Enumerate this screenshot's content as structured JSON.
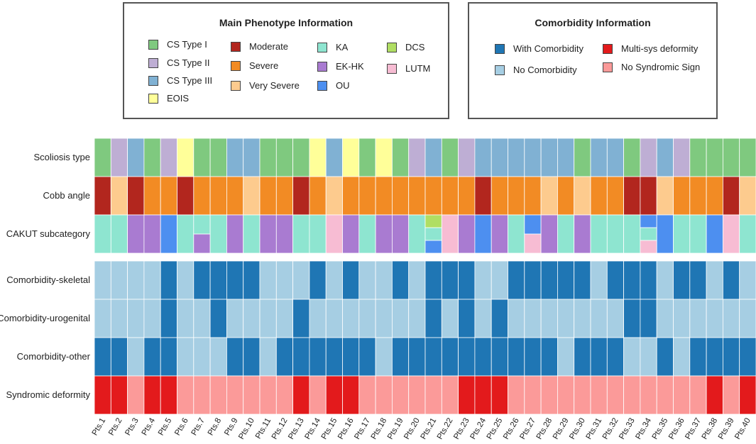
{
  "colors": {
    "cs1": "#7fc97f",
    "cs2": "#beaed4",
    "cs3": "#80b1d3",
    "eois": "#ffff99",
    "moderate": "#b2261e",
    "severe": "#f28b24",
    "very_severe": "#fdcb8e",
    "ka": "#8ee5d0",
    "ekhk": "#a97bd1",
    "ou": "#4d8ff0",
    "dcs": "#b0de63",
    "lutm": "#f7bcd3",
    "with": "#1f76b4",
    "without": "#a6cee3",
    "multisys": "#e31a1c",
    "nosyn": "#fb9a99"
  },
  "legend_phenotype": {
    "title": "Main Phenotype Information",
    "items": [
      {
        "key": "cs1",
        "label": "CS Type I"
      },
      {
        "key": "cs2",
        "label": "CS Type II"
      },
      {
        "key": "cs3",
        "label": "CS Type III"
      },
      {
        "key": "eois",
        "label": "EOIS"
      },
      {
        "key": "moderate",
        "label": "Moderate"
      },
      {
        "key": "severe",
        "label": "Severe"
      },
      {
        "key": "very_severe",
        "label": "Very Severe"
      },
      {
        "key": "ka",
        "label": "KA"
      },
      {
        "key": "ekhk",
        "label": "EK-HK"
      },
      {
        "key": "ou",
        "label": "OU"
      },
      {
        "key": "dcs",
        "label": "DCS"
      },
      {
        "key": "lutm",
        "label": "LUTM"
      }
    ]
  },
  "legend_comorbidity": {
    "title": "Comorbidity Information",
    "items": [
      {
        "key": "with",
        "label": "With Comorbidity"
      },
      {
        "key": "without",
        "label": "No Comorbidity"
      },
      {
        "key": "multisys",
        "label": "Multi-sys deformity"
      },
      {
        "key": "nosyn",
        "label": "No Syndromic Sign"
      }
    ]
  },
  "chart_data": {
    "type": "heatmap",
    "patients": [
      "Pts.1",
      "Pts.2",
      "Pts.3",
      "Pts.4",
      "Pts.5",
      "Pts.6",
      "Pts.7",
      "Pts.8",
      "Pts.9",
      "Pts.10",
      "Pts.11",
      "Pts.12",
      "Pts.13",
      "Pts.14",
      "Pts.15",
      "Pts.16",
      "Pts.17",
      "Pts.18",
      "Pts.19",
      "Pts.20",
      "Pts.21",
      "Pts.22",
      "Pts.23",
      "Pts.24",
      "Pts.25",
      "Pts.26",
      "Pts.27",
      "Pts.28",
      "Pts.29",
      "Pts.30",
      "Pts.31",
      "Pts.32",
      "Pts.33",
      "Pts.34",
      "Pts.35",
      "Pts.36",
      "Pts.37",
      "Pts.38",
      "Pts.39",
      "Pts.40"
    ],
    "rows": [
      {
        "label": "Scoliosis type",
        "group": 1,
        "values": [
          "cs1",
          "cs2",
          "cs3",
          "cs1",
          "cs2",
          "eois",
          "cs1",
          "cs1",
          "cs3",
          "cs3",
          "cs1",
          "cs1",
          "cs1",
          "eois",
          "cs3",
          "eois",
          "cs1",
          "eois",
          "cs1",
          "cs2",
          "cs3",
          "cs1",
          "cs2",
          "cs3",
          "cs3",
          "cs3",
          "cs3",
          "cs3",
          "cs3",
          "cs1",
          "cs3",
          "cs3",
          "cs1",
          "cs2",
          "cs3",
          "cs2",
          "cs1",
          "cs1",
          "cs1",
          "cs1"
        ]
      },
      {
        "label": "Cobb angle",
        "group": 1,
        "values": [
          "moderate",
          "very_severe",
          "moderate",
          "severe",
          "severe",
          "moderate",
          "severe",
          "severe",
          "severe",
          "very_severe",
          "severe",
          "severe",
          "moderate",
          "severe",
          "very_severe",
          "severe",
          "severe",
          "severe",
          "severe",
          "severe",
          "severe",
          "severe",
          "severe",
          "moderate",
          "severe",
          "severe",
          "severe",
          "very_severe",
          "severe",
          "very_severe",
          "severe",
          "severe",
          "moderate",
          "moderate",
          "very_severe",
          "severe",
          "severe",
          "severe",
          "moderate",
          "very_severe"
        ]
      },
      {
        "label": "CAKUT subcategory",
        "group": 1,
        "values": [
          [
            "ka"
          ],
          [
            "ka"
          ],
          [
            "ekhk"
          ],
          [
            "ekhk"
          ],
          [
            "ou"
          ],
          [
            "ka"
          ],
          [
            "ka",
            "ekhk"
          ],
          [
            "ka"
          ],
          [
            "ekhk"
          ],
          [
            "ka"
          ],
          [
            "ekhk"
          ],
          [
            "ekhk"
          ],
          [
            "ka"
          ],
          [
            "ka"
          ],
          [
            "lutm"
          ],
          [
            "ekhk"
          ],
          [
            "ka"
          ],
          [
            "ekhk"
          ],
          [
            "ekhk"
          ],
          [
            "ka"
          ],
          [
            "dcs",
            "ka",
            "ou"
          ],
          [
            "lutm"
          ],
          [
            "ekhk"
          ],
          [
            "ou"
          ],
          [
            "ekhk"
          ],
          [
            "ka"
          ],
          [
            "ou",
            "lutm"
          ],
          [
            "ekhk"
          ],
          [
            "ka"
          ],
          [
            "ekhk"
          ],
          [
            "ka"
          ],
          [
            "ka"
          ],
          [
            "ka"
          ],
          [
            "ou",
            "ka",
            "lutm"
          ],
          [
            "ou"
          ],
          [
            "ka"
          ],
          [
            "ka"
          ],
          [
            "ou"
          ],
          [
            "lutm"
          ],
          [
            "ka"
          ]
        ]
      },
      {
        "label": "Comorbidity-skeletal",
        "group": 2,
        "values": [
          "without",
          "without",
          "without",
          "without",
          "with",
          "without",
          "with",
          "with",
          "with",
          "with",
          "without",
          "without",
          "without",
          "with",
          "without",
          "with",
          "without",
          "without",
          "with",
          "without",
          "with",
          "with",
          "with",
          "without",
          "without",
          "with",
          "with",
          "with",
          "with",
          "with",
          "without",
          "with",
          "with",
          "with",
          "without",
          "with",
          "with",
          "without",
          "with",
          "without"
        ]
      },
      {
        "label": "Comorbidity-urogenital",
        "group": 2,
        "values": [
          "without",
          "without",
          "without",
          "without",
          "with",
          "without",
          "without",
          "with",
          "without",
          "without",
          "without",
          "without",
          "with",
          "without",
          "without",
          "without",
          "without",
          "without",
          "without",
          "without",
          "with",
          "without",
          "with",
          "without",
          "with",
          "without",
          "without",
          "without",
          "without",
          "without",
          "without",
          "without",
          "with",
          "with",
          "without",
          "without",
          "without",
          "without",
          "without",
          "without"
        ]
      },
      {
        "label": "Comorbidity-other",
        "group": 2,
        "values": [
          "with",
          "with",
          "without",
          "with",
          "with",
          "without",
          "without",
          "without",
          "with",
          "with",
          "without",
          "with",
          "with",
          "with",
          "with",
          "with",
          "with",
          "without",
          "with",
          "with",
          "with",
          "with",
          "with",
          "with",
          "with",
          "with",
          "with",
          "with",
          "without",
          "with",
          "with",
          "with",
          "without",
          "without",
          "with",
          "without",
          "with",
          "with",
          "with",
          "with"
        ]
      },
      {
        "label": "Syndromic deformity",
        "group": 2,
        "values": [
          "multisys",
          "multisys",
          "nosyn",
          "multisys",
          "multisys",
          "nosyn",
          "nosyn",
          "nosyn",
          "nosyn",
          "nosyn",
          "nosyn",
          "nosyn",
          "multisys",
          "nosyn",
          "multisys",
          "multisys",
          "nosyn",
          "nosyn",
          "nosyn",
          "nosyn",
          "nosyn",
          "nosyn",
          "multisys",
          "multisys",
          "multisys",
          "nosyn",
          "nosyn",
          "nosyn",
          "nosyn",
          "nosyn",
          "nosyn",
          "nosyn",
          "nosyn",
          "nosyn",
          "nosyn",
          "nosyn",
          "nosyn",
          "multisys",
          "nosyn",
          "multisys"
        ]
      }
    ]
  }
}
